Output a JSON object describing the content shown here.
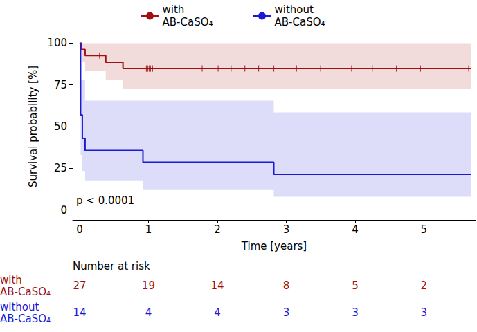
{
  "chart_data": {
    "type": "line",
    "x_label": "Time [years]",
    "y_label": "Survival probability [%]",
    "xlim": [
      -0.1,
      5.75
    ],
    "xticks": [
      0,
      1,
      2,
      3,
      4,
      5
    ],
    "ylim": [
      -6,
      106
    ],
    "yticks": [
      0,
      25,
      50,
      75,
      100
    ],
    "grid": false,
    "legend": "top",
    "annotation": "p < 0.0001",
    "risk_table": {
      "title": "Number at risk",
      "times": [
        0,
        1,
        2,
        3,
        4,
        5
      ]
    },
    "series": [
      {
        "name": "with AB-CaSO₄",
        "color": "#a01010",
        "line_style": "step",
        "marker": "vline",
        "x": [
          0,
          0.03,
          0.08,
          0.38,
          0.63,
          5.68
        ],
        "values": [
          100,
          96.3,
          92.6,
          88.6,
          84.8,
          84.8
        ],
        "ci_lower": [
          100,
          89,
          83.4,
          78,
          72.6,
          72.6
        ],
        "ci_upper": [
          100,
          100,
          100,
          100,
          100,
          100
        ],
        "censored": [
          0.29,
          0.97,
          0.99,
          1.01,
          1.03,
          1.06,
          1.78,
          2.0,
          2.02,
          2.2,
          2.4,
          2.6,
          2.82,
          3.15,
          3.5,
          3.95,
          4.25,
          4.6,
          4.95,
          5.65
        ],
        "at_risk": [
          27,
          19,
          14,
          8,
          5,
          2
        ]
      },
      {
        "name": "without AB-CaSO₄",
        "color": "#1a1ad6",
        "line_style": "step",
        "marker": "vline",
        "x": [
          0,
          0.015,
          0.04,
          0.08,
          0.92,
          2.82,
          5.68
        ],
        "values": [
          100,
          57.1,
          42.9,
          35.7,
          28.6,
          21.4,
          21.4
        ],
        "ci_lower": [
          100,
          33,
          23.5,
          17.8,
          12.4,
          7.9,
          7.9
        ],
        "ci_upper": [
          100,
          78,
          78,
          65.6,
          65.6,
          58.5,
          58.5
        ],
        "censored": [],
        "at_risk": [
          14,
          4,
          4,
          3,
          3,
          3
        ]
      }
    ]
  }
}
